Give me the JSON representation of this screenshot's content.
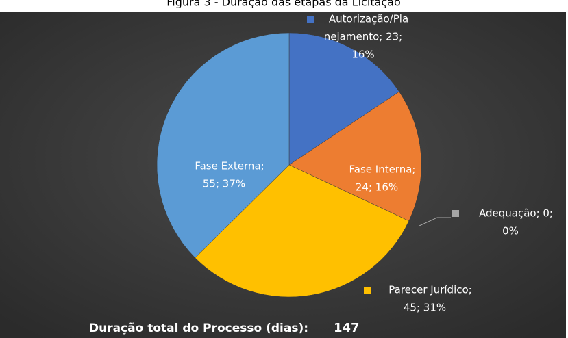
{
  "chart_data": {
    "type": "pie",
    "title": "Figura 3 - Duração das etapas da Licitação",
    "categories": [
      "Autorização/Planejamento",
      "Fase Interna",
      "Adequação",
      "Parecer Jurídico",
      "Fase Externa"
    ],
    "values": [
      23,
      24,
      0,
      45,
      55
    ],
    "value_labels": [
      [
        "Autorização/Pla",
        "nejamento; 23;",
        "16%"
      ],
      [
        "Fase Interna;",
        "24; 16%"
      ],
      [
        "Adequação; 0;",
        "0%"
      ],
      [
        "Parecer Jurídico;",
        "45; 31%"
      ],
      [
        "Fase Externa;",
        "55; 37%"
      ]
    ],
    "colors": [
      "#4472c4",
      "#ed7d31",
      "#a5a5a5",
      "#ffc000",
      "#5b9bd5"
    ],
    "footer_label": "Duração total do Processo (dias):",
    "total": 147
  }
}
